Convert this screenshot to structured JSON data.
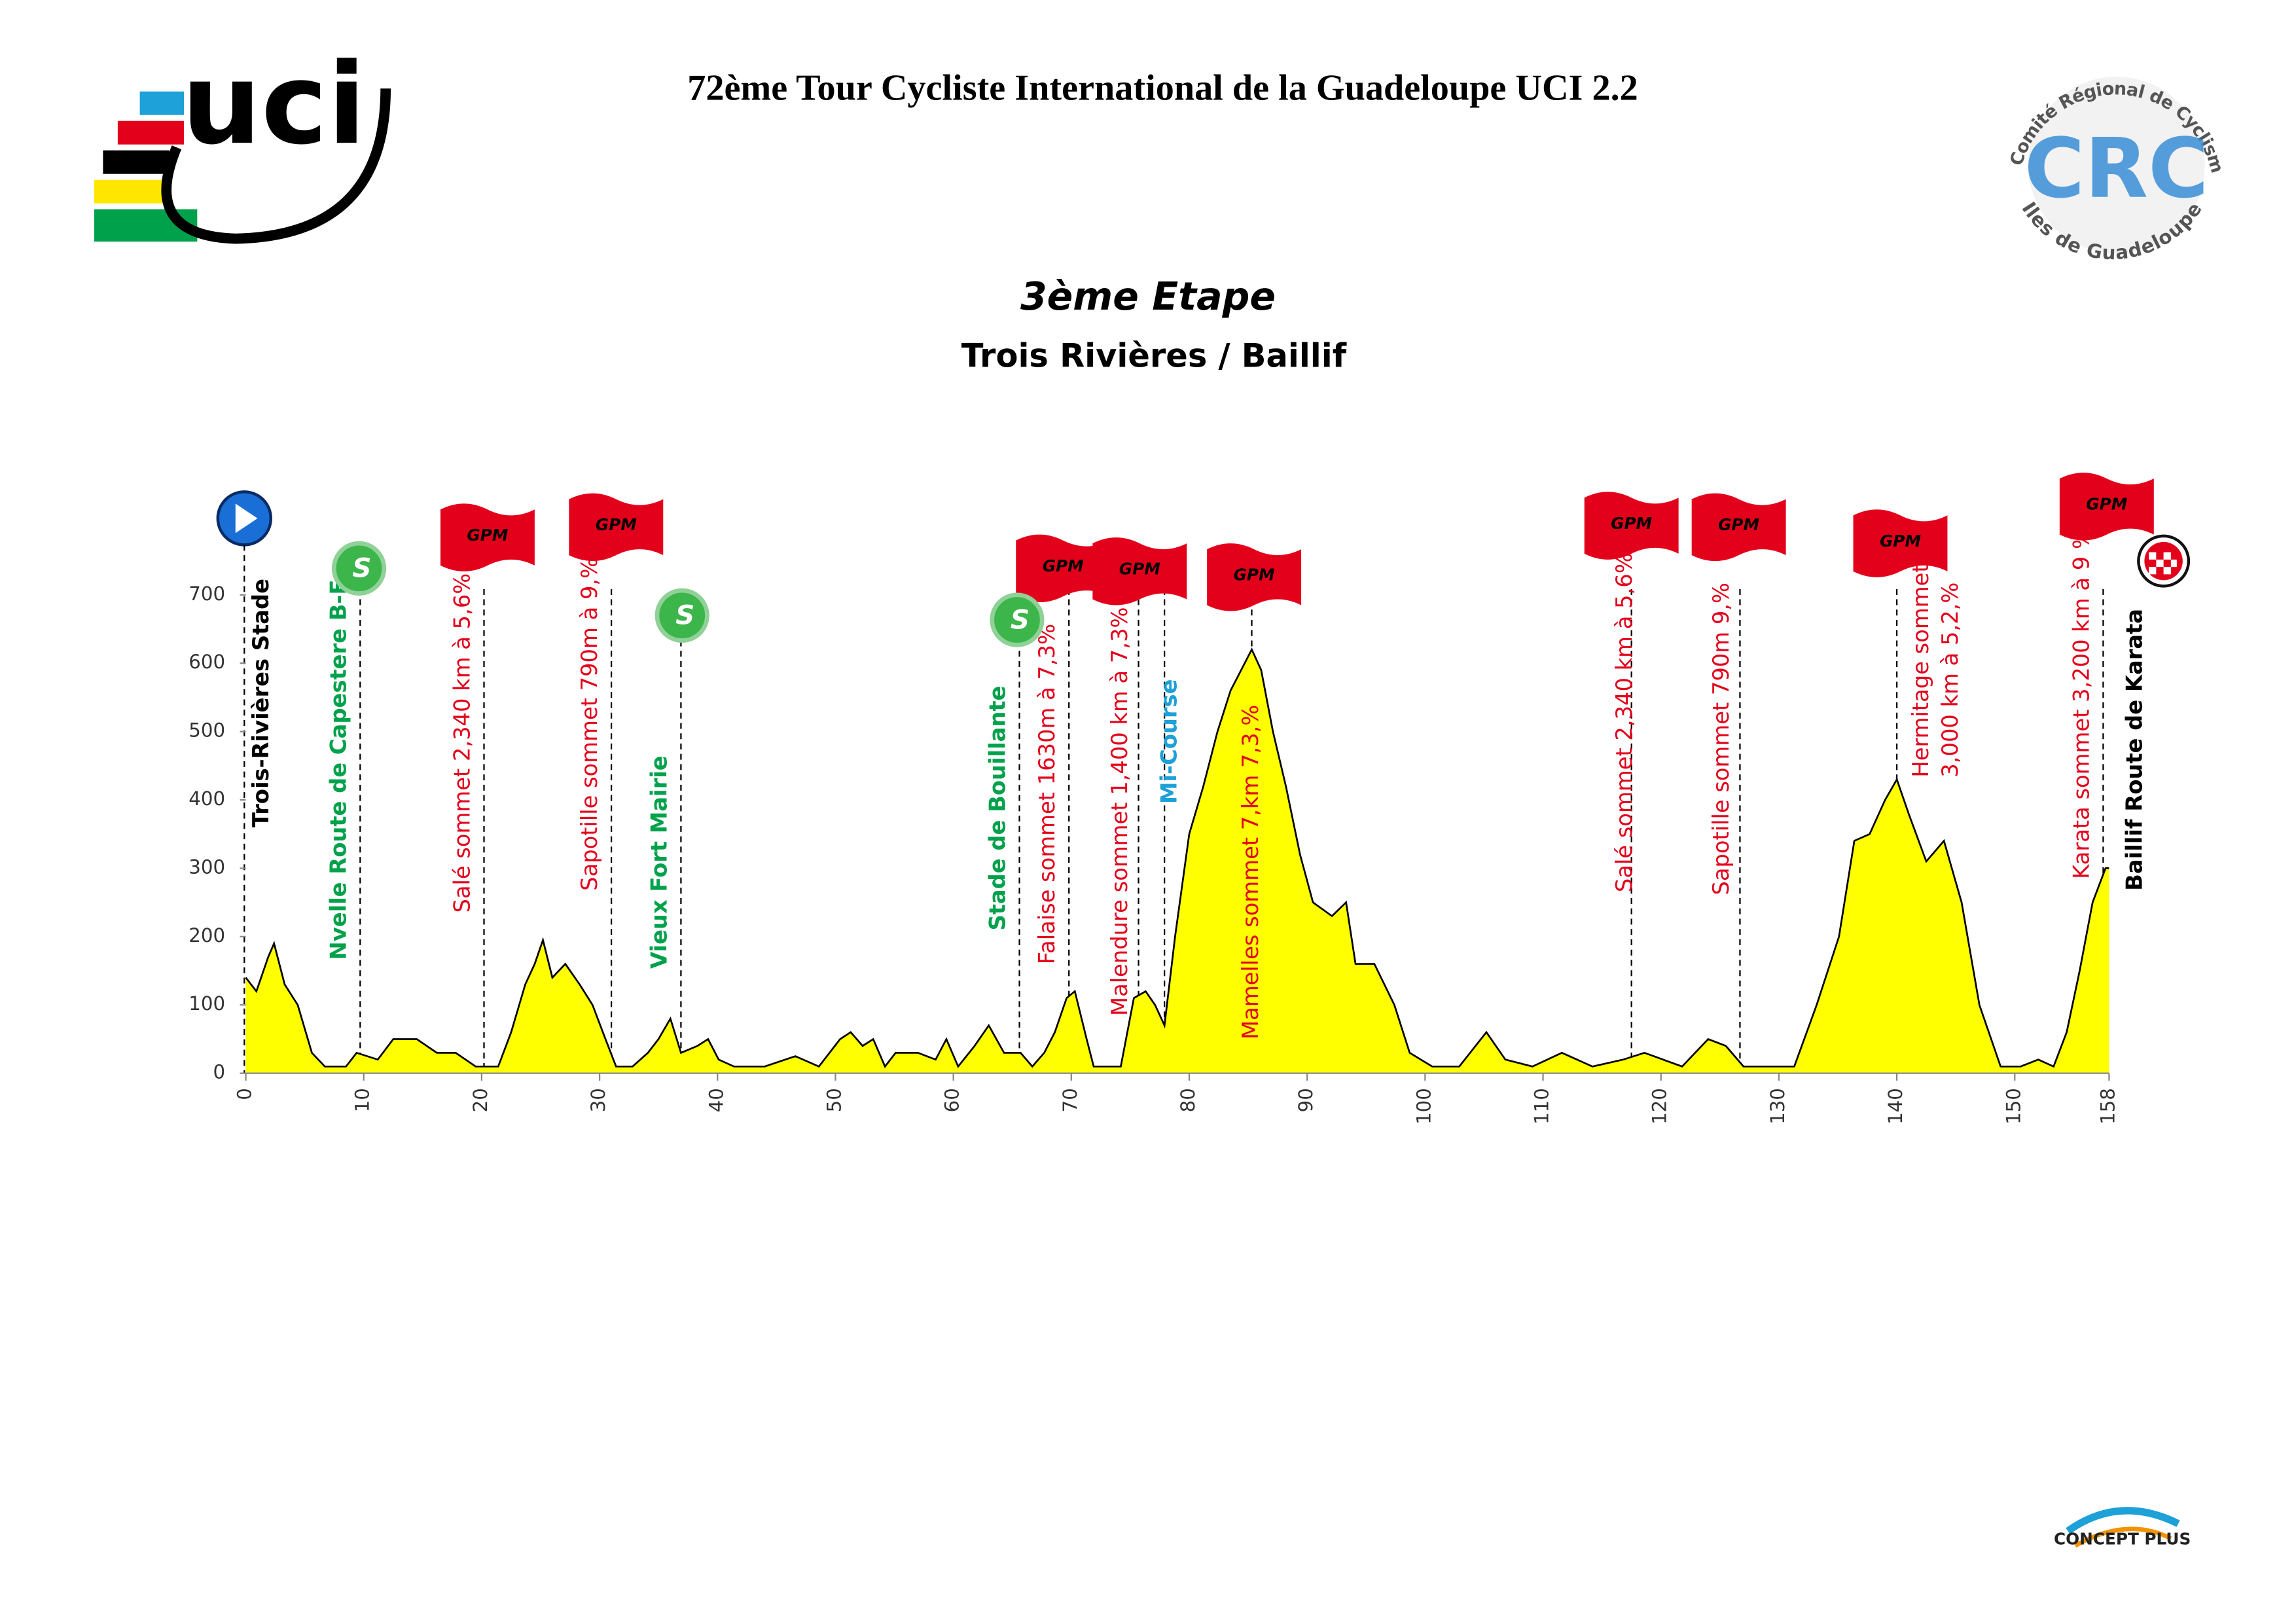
{
  "header": {
    "title": "72ème Tour Cycliste International de la Guadeloupe UCI 2.2",
    "stage": "3ème  Etape",
    "route": "Trois Rivières  /  Baillif"
  },
  "logos": {
    "uci": "uci",
    "crc_top": "Comité Régional de Cyclisme",
    "crc_bottom": "Iles de Guadeloupe",
    "crc_mark": "CRC",
    "footer": "CONCEPT  PLUS"
  },
  "chart_data": {
    "type": "area",
    "color": "#ffff00",
    "x": [
      0,
      0.9,
      1.9,
      2.4,
      3.3,
      4.4,
      5.6,
      6.7,
      8.5,
      9.4,
      11.2,
      12.5,
      14.5,
      16.2,
      17.8,
      19.5,
      21.4,
      22.5,
      23.7,
      24.5,
      25.2,
      26,
      27.1,
      28.3,
      29.4,
      30.5,
      31.4,
      32.8,
      34.1,
      35,
      36,
      36.9,
      38.3,
      39.2,
      40.1,
      41.4,
      44,
      46.6,
      48.6,
      50.4,
      51.3,
      52.3,
      53.2,
      54.2,
      55.1,
      57,
      58.5,
      59.4,
      60.4,
      61.8,
      63,
      64.3,
      65.7,
      66.7,
      67.7,
      68.6,
      69.6,
      70.3,
      71.3,
      71.9,
      74.2,
      75.3,
      76.3,
      77.1,
      77.9,
      78.8,
      80,
      81.2,
      82.4,
      83.5,
      84.7,
      85.3,
      86.1,
      87.1,
      88.2,
      89.4,
      90.5,
      92.1,
      93.3,
      94.1,
      95.7,
      97.4,
      98.7,
      100.6,
      102.9,
      105.2,
      106.8,
      109.1,
      111.6,
      114.2,
      116.8,
      118.6,
      121.8,
      124,
      125.5,
      127,
      131.3,
      133.2,
      135.1,
      136.4,
      137.7,
      139,
      140,
      141,
      142.5,
      144,
      145.5,
      147,
      148.8,
      150.5,
      152,
      153.3,
      154.4,
      155.5,
      156.6,
      157.7,
      158
    ],
    "values": [
      140,
      120,
      170,
      190,
      130,
      100,
      30,
      10,
      10,
      30,
      20,
      50,
      50,
      30,
      30,
      10,
      10,
      60,
      130,
      160,
      195,
      140,
      160,
      130,
      100,
      50,
      10,
      10,
      30,
      50,
      80,
      30,
      40,
      50,
      20,
      10,
      10,
      25,
      10,
      50,
      60,
      40,
      50,
      10,
      30,
      30,
      20,
      50,
      10,
      40,
      70,
      30,
      30,
      10,
      30,
      60,
      110,
      120,
      50,
      10,
      10,
      110,
      120,
      100,
      70,
      200,
      350,
      420,
      500,
      560,
      600,
      620,
      590,
      500,
      420,
      320,
      250,
      230,
      250,
      160,
      160,
      100,
      30,
      10,
      10,
      60,
      20,
      10,
      30,
      10,
      20,
      30,
      10,
      50,
      40,
      10,
      10,
      100,
      200,
      340,
      350,
      400,
      430,
      380,
      310,
      340,
      250,
      100,
      10,
      10,
      20,
      10,
      60,
      150,
      250,
      300,
      300
    ],
    "xlim": [
      0,
      158
    ],
    "ylim": [
      0,
      700
    ],
    "xticks": [
      0,
      10,
      20,
      30,
      40,
      50,
      60,
      70,
      80,
      90,
      100,
      110,
      120,
      130,
      140,
      150,
      158
    ],
    "yticks": [
      0,
      100,
      200,
      300,
      400,
      500,
      600,
      700
    ],
    "annotations": [
      {
        "lines": [
          "Trois-Rivières Stade"
        ],
        "km": 0,
        "color": "#000000"
      },
      {
        "lines": [
          "Nvelle Route de Capestere B-E"
        ],
        "km": 9.7,
        "color": "#00a14b"
      },
      {
        "lines": [
          "Salé sommet  2,340 km à 5,6%"
        ],
        "km": 20.2,
        "color": "#e3001b"
      },
      {
        "lines": [
          "Sapotille sommet  790m à 9,%"
        ],
        "km": 31,
        "color": "#e3001b"
      },
      {
        "lines": [
          "Vieux Fort  Mairie"
        ],
        "km": 36.9,
        "color": "#00a14b"
      },
      {
        "lines": [
          "Stade de Bouillante"
        ],
        "km": 65.6,
        "color": "#00a14b"
      },
      {
        "lines": [
          "Falaise sommet  1630m à 7,3%"
        ],
        "km": 69.8,
        "color": "#e3001b"
      },
      {
        "lines": [
          "Malendure sommet  1,400 km  à 7,3%"
        ],
        "km": 75.7,
        "color": "#e3001b"
      },
      {
        "lines": [
          "Mi-Course"
        ],
        "km": 77.9,
        "color": "#1ea0d8"
      },
      {
        "lines": [
          "Mamelles sommet  7,km 7,3,%"
        ],
        "km": 85.3,
        "color": "#e3001b"
      },
      {
        "lines": [
          "Salé sommet  2,340 km à 5,6%"
        ],
        "km": 117.5,
        "color": "#e3001b"
      },
      {
        "lines": [
          "Sapotille sommet  790m 9,%"
        ],
        "km": 126.7,
        "color": "#e3001b"
      },
      {
        "lines": [
          "Hermitage sommet",
          "3,000 km à 5,2,%"
        ],
        "km": 140,
        "color": "#e3001b"
      },
      {
        "lines": [
          "Karata sommet  3,200 km à 9 %"
        ],
        "km": 157.5,
        "color": "#e3001b"
      },
      {
        "lines": [
          "Baillif Route de Karata"
        ],
        "km": 158,
        "color": "#000000"
      }
    ],
    "flags": [
      {
        "label": "GPM",
        "km": 20.5
      },
      {
        "label": "GPM",
        "km": 31.4
      },
      {
        "label": "GPM",
        "km": 69.3
      },
      {
        "label": "GPM",
        "km": 75.8
      },
      {
        "label": "GPM",
        "km": 85.5
      },
      {
        "label": "GPM",
        "km": 117.5
      },
      {
        "label": "GPM",
        "km": 126.6
      },
      {
        "label": "GPM",
        "km": 140.3
      },
      {
        "label": "GPM",
        "km": 157.8
      }
    ],
    "sprints": [
      {
        "label": "S",
        "km": 9.6
      },
      {
        "label": "S",
        "km": 37
      },
      {
        "label": "S",
        "km": 65.4
      }
    ]
  }
}
